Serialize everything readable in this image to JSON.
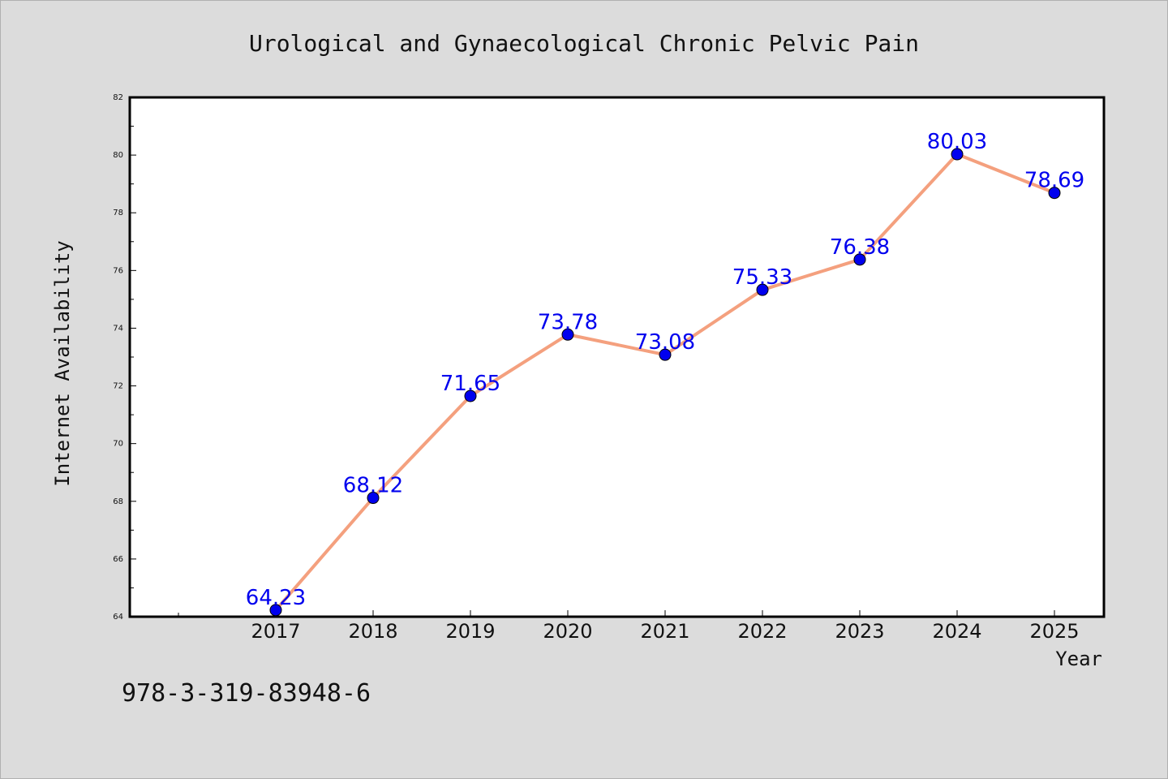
{
  "chart_data": {
    "type": "line",
    "title": "Urological and Gynaecological Chronic Pelvic Pain",
    "xlabel": "Year",
    "ylabel": "Internet Availability",
    "footnote": "978-3-319-83948-6",
    "categories": [
      "2017",
      "2018",
      "2019",
      "2020",
      "2021",
      "2022",
      "2023",
      "2024",
      "2025"
    ],
    "series": [
      {
        "values": [
          64.23,
          68.12,
          71.65,
          73.78,
          73.08,
          75.33,
          76.38,
          80.03,
          78.69
        ],
        "line_color": "#f4a07e",
        "marker_color": "#0000ee",
        "label_color": "#0000ee"
      }
    ],
    "ylim": [
      64,
      82
    ],
    "yticks": [
      "64",
      "66",
      "68",
      "70",
      "72",
      "74",
      "76",
      "78",
      "80",
      "82"
    ],
    "grid": false,
    "legend": "none"
  }
}
